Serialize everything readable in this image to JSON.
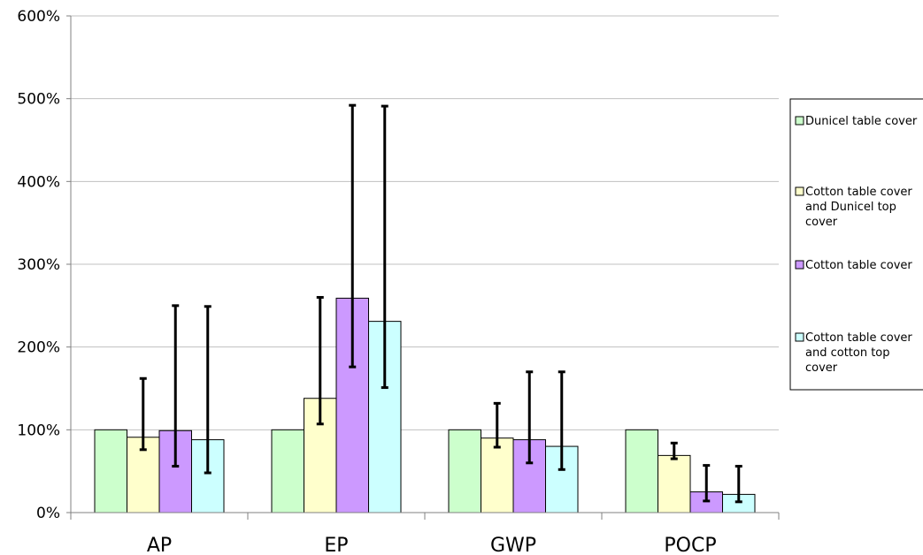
{
  "chart_data": {
    "type": "bar",
    "title": "",
    "xlabel": "",
    "ylabel": "",
    "categories": [
      "AP",
      "EP",
      "GWP",
      "POCP"
    ],
    "ylim": [
      0,
      600
    ],
    "yticks": [
      0,
      100,
      200,
      300,
      400,
      500,
      600
    ],
    "ytick_labels": [
      "0%",
      "100%",
      "200%",
      "300%",
      "400%",
      "500%",
      "600%"
    ],
    "grid": "horizontal",
    "legend_position": "right",
    "series": [
      {
        "name": "Dunicel table cover",
        "color": "#ccffcc",
        "values": [
          100,
          100,
          100,
          100
        ],
        "error_low": [
          null,
          null,
          null,
          null
        ],
        "error_high": [
          null,
          null,
          null,
          null
        ]
      },
      {
        "name": "Cotton table cover and Dunicel top cover",
        "legend_lines": [
          "Cotton table cover",
          "and Dunicel top",
          "cover"
        ],
        "color": "#ffffcc",
        "values": [
          91,
          138,
          90,
          69
        ],
        "error_low": [
          76,
          107,
          79,
          65
        ],
        "error_high": [
          162,
          260,
          132,
          84
        ]
      },
      {
        "name": "Cotton table cover",
        "legend_lines": [
          "Cotton table cover"
        ],
        "color": "#cc99ff",
        "values": [
          99,
          259,
          88,
          25
        ],
        "error_low": [
          56,
          176,
          60,
          14
        ],
        "error_high": [
          250,
          492,
          170,
          57
        ]
      },
      {
        "name": "Cotton table cover and cotton top cover",
        "legend_lines": [
          "Cotton table cover",
          "and cotton top",
          "cover"
        ],
        "color": "#ccffff",
        "values": [
          88,
          231,
          80,
          22
        ],
        "error_low": [
          48,
          151,
          52,
          13
        ],
        "error_high": [
          249,
          491,
          170,
          56
        ]
      }
    ]
  }
}
